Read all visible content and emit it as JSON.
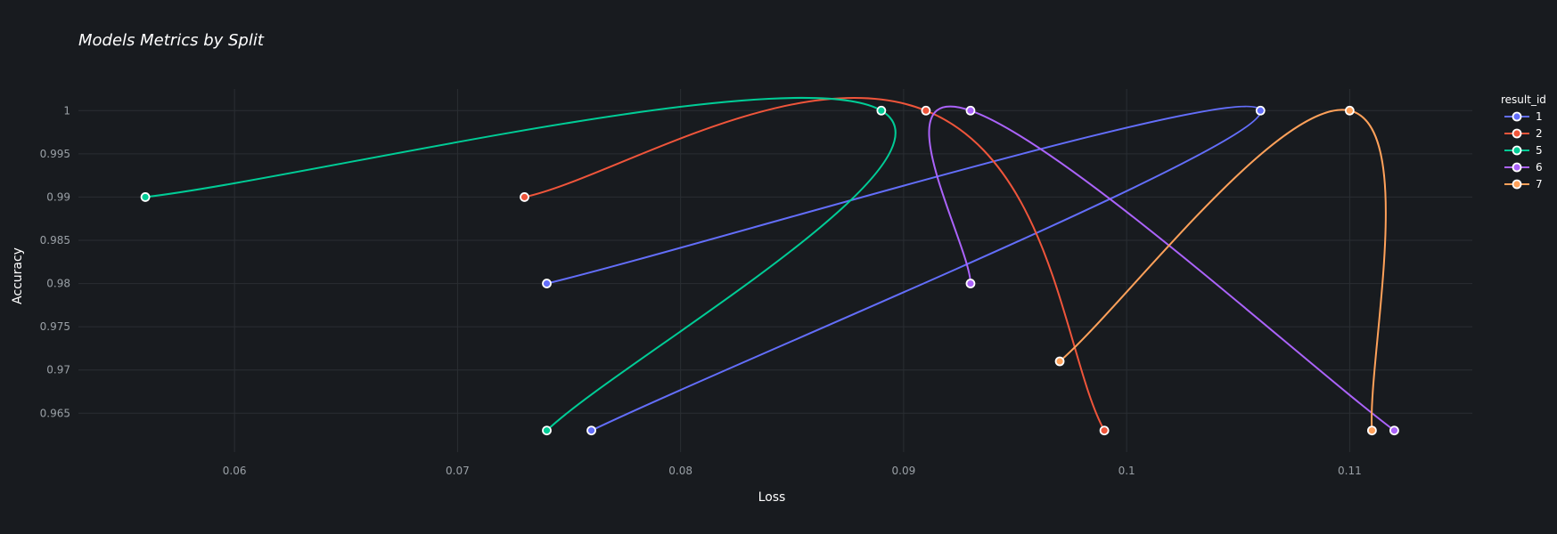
{
  "chart_data": {
    "type": "line",
    "title": "Models Metrics by Split",
    "xlabel": "Loss",
    "ylabel": "Accuracy",
    "xlim": [
      0.053,
      0.1155
    ],
    "ylim": [
      0.9605,
      1.0025
    ],
    "x_ticks": [
      0.06,
      0.07,
      0.08,
      0.09,
      0.1,
      0.11
    ],
    "x_tick_labels": [
      "0.06",
      "0.07",
      "0.08",
      "0.09",
      "0.1",
      "0.11"
    ],
    "y_ticks": [
      0.965,
      0.97,
      0.975,
      0.98,
      0.985,
      0.99,
      0.995,
      1
    ],
    "y_tick_labels": [
      "0.965",
      "0.97",
      "0.975",
      "0.98",
      "0.985",
      "0.99",
      "0.995",
      "1"
    ],
    "grid": true,
    "legend_title": "result_id",
    "legend_position": "top-right",
    "series": [
      {
        "name": "1",
        "color": "#636efa",
        "points": [
          {
            "x": 0.074,
            "y": 0.98
          },
          {
            "x": 0.106,
            "y": 1.0
          },
          {
            "x": 0.076,
            "y": 0.963
          }
        ]
      },
      {
        "name": "2",
        "color": "#ef553b",
        "points": [
          {
            "x": 0.073,
            "y": 0.99
          },
          {
            "x": 0.091,
            "y": 1.0
          },
          {
            "x": 0.099,
            "y": 0.963
          }
        ]
      },
      {
        "name": "5",
        "color": "#00cc96",
        "points": [
          {
            "x": 0.056,
            "y": 0.99
          },
          {
            "x": 0.089,
            "y": 1.0
          },
          {
            "x": 0.074,
            "y": 0.963
          }
        ]
      },
      {
        "name": "6",
        "color": "#ab63fa",
        "points": [
          {
            "x": 0.093,
            "y": 0.98
          },
          {
            "x": 0.093,
            "y": 1.0
          },
          {
            "x": 0.112,
            "y": 0.963
          }
        ]
      },
      {
        "name": "7",
        "color": "#ffa15a",
        "points": [
          {
            "x": 0.097,
            "y": 0.971
          },
          {
            "x": 0.11,
            "y": 1.0
          },
          {
            "x": 0.111,
            "y": 0.963
          }
        ]
      }
    ]
  }
}
